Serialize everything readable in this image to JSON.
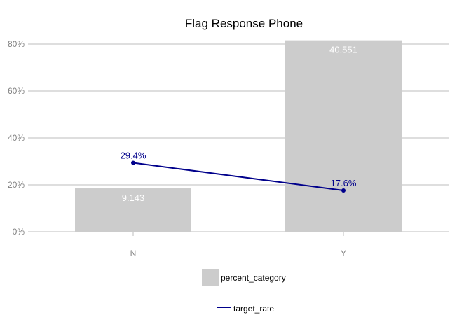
{
  "chart_data": {
    "type": "bar",
    "title": "Flag Response Phone",
    "categories": [
      "N",
      "Y"
    ],
    "bar_series": {
      "name": "percent_category",
      "values": [
        18.5,
        81.6
      ],
      "data_labels": [
        "9.143",
        "40.551"
      ],
      "color": "#cccccc"
    },
    "line_series": {
      "name": "target_rate",
      "values": [
        29.4,
        17.6
      ],
      "data_labels": [
        "29.4%",
        "17.6%"
      ],
      "color": "#00008b"
    },
    "yticks": [
      0,
      20,
      40,
      60,
      80
    ],
    "ytick_labels": [
      "0%",
      "20%",
      "40%",
      "60%",
      "80%"
    ],
    "ylim": [
      0,
      83
    ],
    "xlabel": "",
    "ylabel": "",
    "grid": true,
    "legend_position": "bottom"
  }
}
